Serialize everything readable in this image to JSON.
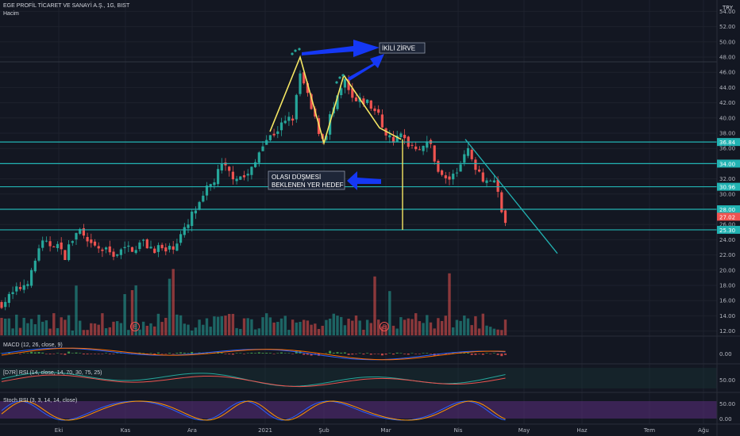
{
  "header": {
    "symbol": "EGE PROFİL TİCARET VE SANAYİ A.Ş., 1G, BIST",
    "volume_label": "Hacim",
    "currency": "TRY"
  },
  "panes": {
    "macd_label": "MACD (12, 26, close, 9)",
    "rsi_label": "[D7R] RSI (14, close, 14, 70, 30, 75, 25)",
    "stoch_label": "Stoch RSI (3, 3, 14, 14, close)"
  },
  "annotations": {
    "double_top": "İKİLİ ZİRVE",
    "target_line1": "OLASI DÜŞMESİ",
    "target_line2": "BEKLENEN YER HEDEF",
    "earnings_marker": "E"
  },
  "colors": {
    "background": "#131722",
    "up": "#26a69a",
    "down": "#ef5350",
    "level_line": "#22b3b3",
    "pattern": "#f5e663",
    "arrow": "#1538f5",
    "stoch_band": "#5b2e7d",
    "macd_line": "#2962ff",
    "signal_line": "#ff6d00",
    "grid": "#1e222d"
  },
  "chart_data": {
    "type": "candlestick",
    "title": "EGE PROFİL TİCARET VE SANAYİ A.Ş., 1G, BIST",
    "y_axis": {
      "ticks": [
        "54.00",
        "52.00",
        "50.00",
        "48.00",
        "46.00",
        "44.00",
        "42.00",
        "40.00",
        "38.00",
        "36.00",
        "34.00",
        "32.00",
        "30.00",
        "28.00",
        "26.00",
        "24.00",
        "22.00",
        "20.00",
        "18.00",
        "16.00",
        "14.00",
        "12.00"
      ],
      "range": [
        11.6,
        55.4
      ]
    },
    "x_axis": {
      "ticks": [
        "Eki",
        "Kas",
        "Ara",
        "2021",
        "Şub",
        "Mar",
        "Nis",
        "May",
        "Haz",
        "Tem",
        "Ağu"
      ]
    },
    "price_labels": [
      "36.84",
      "34.00",
      "30.96",
      "28.00",
      "27.02",
      "25.30"
    ],
    "levels": [
      36.84,
      34.0,
      30.96,
      28.0,
      25.3
    ],
    "price_path": [
      [
        0,
        15.6
      ],
      [
        10,
        16.3
      ],
      [
        20,
        17.2
      ],
      [
        30,
        18.1
      ],
      [
        40,
        19.5
      ],
      [
        50,
        23.5
      ],
      [
        60,
        23.2
      ],
      [
        70,
        23.8
      ],
      [
        80,
        21.6
      ],
      [
        90,
        23.8
      ],
      [
        100,
        25.3
      ],
      [
        110,
        23.2
      ],
      [
        120,
        22.9
      ],
      [
        130,
        22.6
      ],
      [
        140,
        22.2
      ],
      [
        150,
        22.3
      ],
      [
        160,
        22.8
      ],
      [
        170,
        23.1
      ],
      [
        180,
        23.6
      ],
      [
        190,
        23.0
      ],
      [
        200,
        22.9
      ],
      [
        210,
        22.3
      ],
      [
        220,
        23.5
      ],
      [
        228,
        24.6
      ],
      [
        236,
        25.6
      ],
      [
        244,
        27.8
      ],
      [
        252,
        28.4
      ],
      [
        260,
        30.4
      ],
      [
        270,
        31.9
      ],
      [
        280,
        33.7
      ],
      [
        290,
        32.6
      ],
      [
        300,
        32.4
      ],
      [
        310,
        32.2
      ],
      [
        320,
        33.6
      ],
      [
        330,
        36.9
      ],
      [
        340,
        37.5
      ],
      [
        350,
        38.6
      ],
      [
        360,
        39.4
      ],
      [
        370,
        40.2
      ],
      [
        378,
        45.8
      ],
      [
        385,
        43.5
      ],
      [
        392,
        41.1
      ],
      [
        400,
        38.7
      ],
      [
        408,
        37.0
      ],
      [
        416,
        40.3
      ],
      [
        424,
        42.0
      ],
      [
        434,
        44.8
      ],
      [
        442,
        42.5
      ],
      [
        450,
        41.9
      ],
      [
        460,
        42.3
      ],
      [
        468,
        41.4
      ],
      [
        476,
        40.4
      ],
      [
        484,
        38.4
      ],
      [
        492,
        37.2
      ],
      [
        500,
        37.2
      ],
      [
        506,
        37.7
      ],
      [
        512,
        36.8
      ],
      [
        520,
        36.4
      ],
      [
        528,
        36.3
      ],
      [
        536,
        36.5
      ],
      [
        544,
        36.3
      ],
      [
        550,
        33.5
      ],
      [
        556,
        32.3
      ],
      [
        562,
        31.9
      ],
      [
        570,
        32.3
      ],
      [
        578,
        33.2
      ],
      [
        584,
        36.0
      ],
      [
        590,
        35.4
      ],
      [
        596,
        34.4
      ],
      [
        602,
        33.3
      ],
      [
        608,
        32.3
      ],
      [
        614,
        31.6
      ],
      [
        620,
        32.3
      ],
      [
        626,
        30.5
      ],
      [
        632,
        28.0
      ],
      [
        637,
        26.0
      ],
      [
        640,
        25.3
      ]
    ],
    "double_top_pattern": [
      [
        340,
        38.2
      ],
      [
        378,
        48.0
      ],
      [
        408,
        36.7
      ],
      [
        433,
        45.6
      ],
      [
        478,
        38.7
      ],
      [
        505,
        37.2
      ]
    ],
    "target_drop": {
      "from": 37.2,
      "to": 25.3
    },
    "trendline": [
      [
        37.2,
        586
      ],
      [
        22.2,
        702
      ]
    ],
    "macd_ticks": [
      "0.00"
    ],
    "rsi_ticks": [
      "50.00"
    ],
    "stoch_ticks": [
      "50.00",
      "0.00"
    ]
  }
}
